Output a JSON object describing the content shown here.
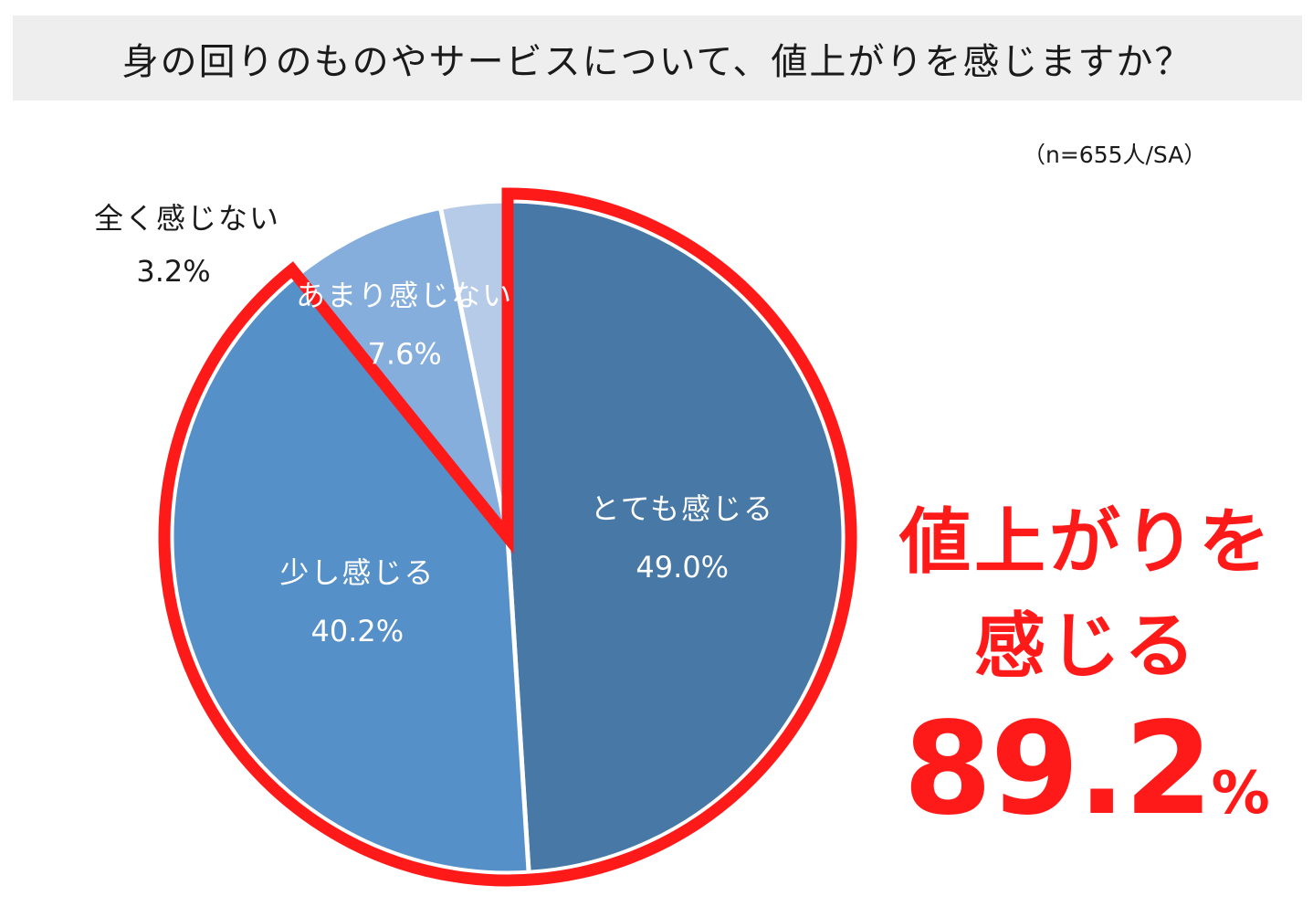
{
  "header": {
    "title": "身の回りのものやサービスについて、値上がりを感じますか？"
  },
  "sample_note": "（n=655人/SA）",
  "chart_data": {
    "type": "pie",
    "title": "身の回りのものやサービスについて、値上がりを感じますか？",
    "slices": [
      {
        "label": "とても感じる",
        "value": 49.0,
        "value_label": "49.0%",
        "color": "#4878a6",
        "label_color": "#ffffff"
      },
      {
        "label": "少し感じる",
        "value": 40.2,
        "value_label": "40.2%",
        "color": "#5590c8",
        "label_color": "#ffffff"
      },
      {
        "label": "あまり感じない",
        "value": 7.6,
        "value_label": "7.6%",
        "color": "#85aedc",
        "label_color": "#ffffff"
      },
      {
        "label": "全く感じない",
        "value": 3.2,
        "value_label": "3.2%",
        "color": "#b5cbe8",
        "label_color": "#1a1a1a"
      }
    ],
    "start": "12 o'clock",
    "direction": "clockwise",
    "highlight": {
      "slices": [
        "とても感じる",
        "少し感じる"
      ],
      "outline_color": "#ff1a1a"
    }
  },
  "callout": {
    "line1": "値上がりを",
    "line2": "感じる",
    "number": "89.2",
    "unit": "%",
    "color": "#ff1a1a"
  }
}
